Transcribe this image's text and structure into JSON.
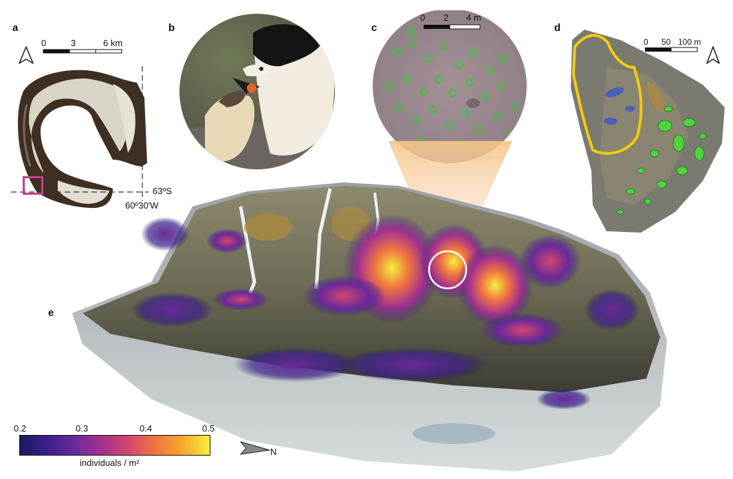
{
  "panels": {
    "a": "a",
    "b": "b",
    "c": "c",
    "d": "d",
    "e": "e"
  },
  "panel_a": {
    "scale_labels": [
      "0",
      "3",
      "6 km"
    ],
    "lat_label": "63ºS",
    "lon_label": "60º30'W"
  },
  "panel_c": {
    "scale_labels": [
      "0",
      "2",
      "4 m"
    ]
  },
  "panel_d": {
    "scale_labels": [
      "0",
      "50",
      "100 m"
    ]
  },
  "colorbar": {
    "ticks": [
      "0.2",
      "0.3",
      "0.4",
      "0.5"
    ],
    "label": "individuals / m²",
    "gradient": [
      "#1a1a5e",
      "#3b1f8a",
      "#6a2a9a",
      "#a3318f",
      "#d4466e",
      "#f0753f",
      "#f7a92a",
      "#f5ef3d"
    ]
  },
  "north_arrow_label": "N",
  "colors": {
    "highlight_box": "#c2408f",
    "detection_outline": "#3ec23e",
    "boundary": "#f0cc10",
    "lake": "#4a5fb8"
  }
}
